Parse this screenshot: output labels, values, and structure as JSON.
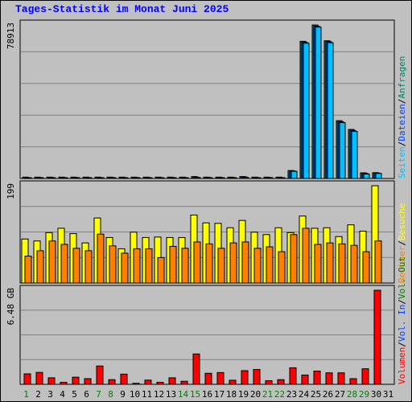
{
  "title": "Tages-Statistik im Monat Juni 2025",
  "colors": {
    "title": "#0000ff",
    "anfragen": "#008060",
    "dateien": "#0040ff",
    "seiten": "#00c0ff",
    "besuche": "#ffff00",
    "rechner": "#ff8000",
    "vol_out": "#008000",
    "vol_in": "#0040ff",
    "volumen": "#ff0000",
    "weekend_day": "#008000",
    "weekday": "#000000",
    "panel_bg": "#c0c0c0",
    "grid": "#808080"
  },
  "legends": {
    "top": [
      "Anfragen",
      "Dateien",
      "Seiten"
    ],
    "middle": [
      "Besuche",
      "Rechner"
    ],
    "bottom": [
      "Vol. Out",
      "Vol. In",
      "Volumen"
    ],
    "separator": "/"
  },
  "chart_data": [
    {
      "type": "bar",
      "panel": "top",
      "ymax_label": "78913",
      "ylim": [
        0,
        78913
      ],
      "categories": [
        "1",
        "2",
        "3",
        "4",
        "5",
        "6",
        "7",
        "8",
        "9",
        "10",
        "11",
        "12",
        "13",
        "14",
        "15",
        "16",
        "17",
        "18",
        "19",
        "20",
        "21",
        "22",
        "23",
        "24",
        "25",
        "26",
        "27",
        "28",
        "29",
        "30",
        "31"
      ],
      "series": [
        {
          "name": "Anfragen",
          "color": "#008060",
          "values": [
            700,
            700,
            700,
            700,
            700,
            700,
            700,
            700,
            700,
            700,
            700,
            700,
            700,
            700,
            1000,
            700,
            700,
            700,
            1000,
            700,
            700,
            700,
            4100,
            70500,
            78900,
            70800,
            29700,
            25200,
            2900,
            3000,
            0
          ]
        },
        {
          "name": "Dateien",
          "color": "#0040ff",
          "values": [
            500,
            500,
            500,
            500,
            500,
            500,
            500,
            500,
            500,
            500,
            500,
            500,
            500,
            500,
            700,
            500,
            500,
            500,
            800,
            500,
            500,
            500,
            3900,
            70000,
            78300,
            70300,
            29200,
            24700,
            2600,
            2800,
            0
          ]
        },
        {
          "name": "Seiten",
          "color": "#00c0ff",
          "values": [
            300,
            300,
            300,
            300,
            300,
            300,
            300,
            300,
            300,
            300,
            300,
            300,
            300,
            300,
            500,
            300,
            300,
            300,
            500,
            300,
            300,
            300,
            3700,
            69500,
            77800,
            69800,
            28700,
            24200,
            2300,
            2600,
            0
          ]
        }
      ]
    },
    {
      "type": "bar",
      "panel": "middle",
      "ymax_label": "199",
      "ylim": [
        0,
        199
      ],
      "categories": [
        "1",
        "2",
        "3",
        "4",
        "5",
        "6",
        "7",
        "8",
        "9",
        "10",
        "11",
        "12",
        "13",
        "14",
        "15",
        "16",
        "17",
        "18",
        "19",
        "20",
        "21",
        "22",
        "23",
        "24",
        "25",
        "26",
        "27",
        "28",
        "29",
        "30",
        "31"
      ],
      "series": [
        {
          "name": "Besuche",
          "color": "#ffff00",
          "values": [
            90,
            86,
            103,
            112,
            101,
            82,
            133,
            93,
            70,
            104,
            93,
            94,
            93,
            93,
            139,
            123,
            122,
            113,
            128,
            104,
            99,
            113,
            103,
            137,
            112,
            113,
            95,
            119,
            106,
            199,
            0
          ]
        },
        {
          "name": "Rechner",
          "color": "#ff8000",
          "values": [
            55,
            66,
            86,
            79,
            71,
            66,
            100,
            76,
            61,
            70,
            70,
            52,
            75,
            71,
            84,
            80,
            71,
            82,
            84,
            71,
            74,
            64,
            99,
            112,
            79,
            82,
            80,
            77,
            64,
            86,
            0
          ]
        }
      ]
    },
    {
      "type": "bar",
      "panel": "bottom",
      "ymax_label": "6.48 GB",
      "ylim": [
        0,
        6.48
      ],
      "categories": [
        "1",
        "2",
        "3",
        "4",
        "5",
        "6",
        "7",
        "8",
        "9",
        "10",
        "11",
        "12",
        "13",
        "14",
        "15",
        "16",
        "17",
        "18",
        "19",
        "20",
        "21",
        "22",
        "23",
        "24",
        "25",
        "26",
        "27",
        "28",
        "29",
        "30",
        "31"
      ],
      "series": [
        {
          "name": "Vol. Out",
          "color": "#008000",
          "values": [
            0,
            0,
            0,
            0,
            0,
            0,
            0,
            0,
            0,
            0,
            0,
            0,
            0,
            0,
            0,
            0,
            0,
            0,
            0,
            0,
            0,
            0,
            0,
            0,
            0,
            0,
            0,
            0,
            0,
            0,
            0
          ]
        },
        {
          "name": "Vol. In",
          "color": "#0040ff",
          "values": [
            0,
            0,
            0,
            0,
            0,
            0,
            0,
            0,
            0,
            0,
            0,
            0,
            0,
            0,
            0,
            0,
            0,
            0,
            0,
            0,
            0,
            0,
            0,
            0,
            0,
            0,
            0,
            0,
            0,
            0,
            0
          ]
        },
        {
          "name": "Volumen",
          "color": "#ff0000",
          "values": [
            0.72,
            0.82,
            0.45,
            0.14,
            0.49,
            0.39,
            1.26,
            0.32,
            0.7,
            0.07,
            0.29,
            0.14,
            0.45,
            0.21,
            2.09,
            0.76,
            0.81,
            0.28,
            0.94,
            1.02,
            0.25,
            0.32,
            1.14,
            0.64,
            0.91,
            0.79,
            0.79,
            0.39,
            1.07,
            6.48,
            0
          ]
        }
      ]
    }
  ],
  "x_labels": [
    {
      "text": "1",
      "weekend": true
    },
    {
      "text": "2",
      "weekend": false
    },
    {
      "text": "3",
      "weekend": false
    },
    {
      "text": "4",
      "weekend": false
    },
    {
      "text": "5",
      "weekend": false
    },
    {
      "text": "6",
      "weekend": false
    },
    {
      "text": "7",
      "weekend": true
    },
    {
      "text": "8",
      "weekend": true
    },
    {
      "text": "9",
      "weekend": false
    },
    {
      "text": "10",
      "weekend": false
    },
    {
      "text": "11",
      "weekend": false
    },
    {
      "text": "12",
      "weekend": false
    },
    {
      "text": "13",
      "weekend": false
    },
    {
      "text": "14",
      "weekend": true
    },
    {
      "text": "15",
      "weekend": true
    },
    {
      "text": "16",
      "weekend": false
    },
    {
      "text": "17",
      "weekend": false
    },
    {
      "text": "18",
      "weekend": false
    },
    {
      "text": "19",
      "weekend": false
    },
    {
      "text": "20",
      "weekend": false
    },
    {
      "text": "21",
      "weekend": true
    },
    {
      "text": "22",
      "weekend": true
    },
    {
      "text": "23",
      "weekend": false
    },
    {
      "text": "24",
      "weekend": false
    },
    {
      "text": "25",
      "weekend": false
    },
    {
      "text": "26",
      "weekend": false
    },
    {
      "text": "27",
      "weekend": false
    },
    {
      "text": "28",
      "weekend": true
    },
    {
      "text": "29",
      "weekend": true
    },
    {
      "text": "30",
      "weekend": false
    },
    {
      "text": "31",
      "weekend": false
    }
  ]
}
